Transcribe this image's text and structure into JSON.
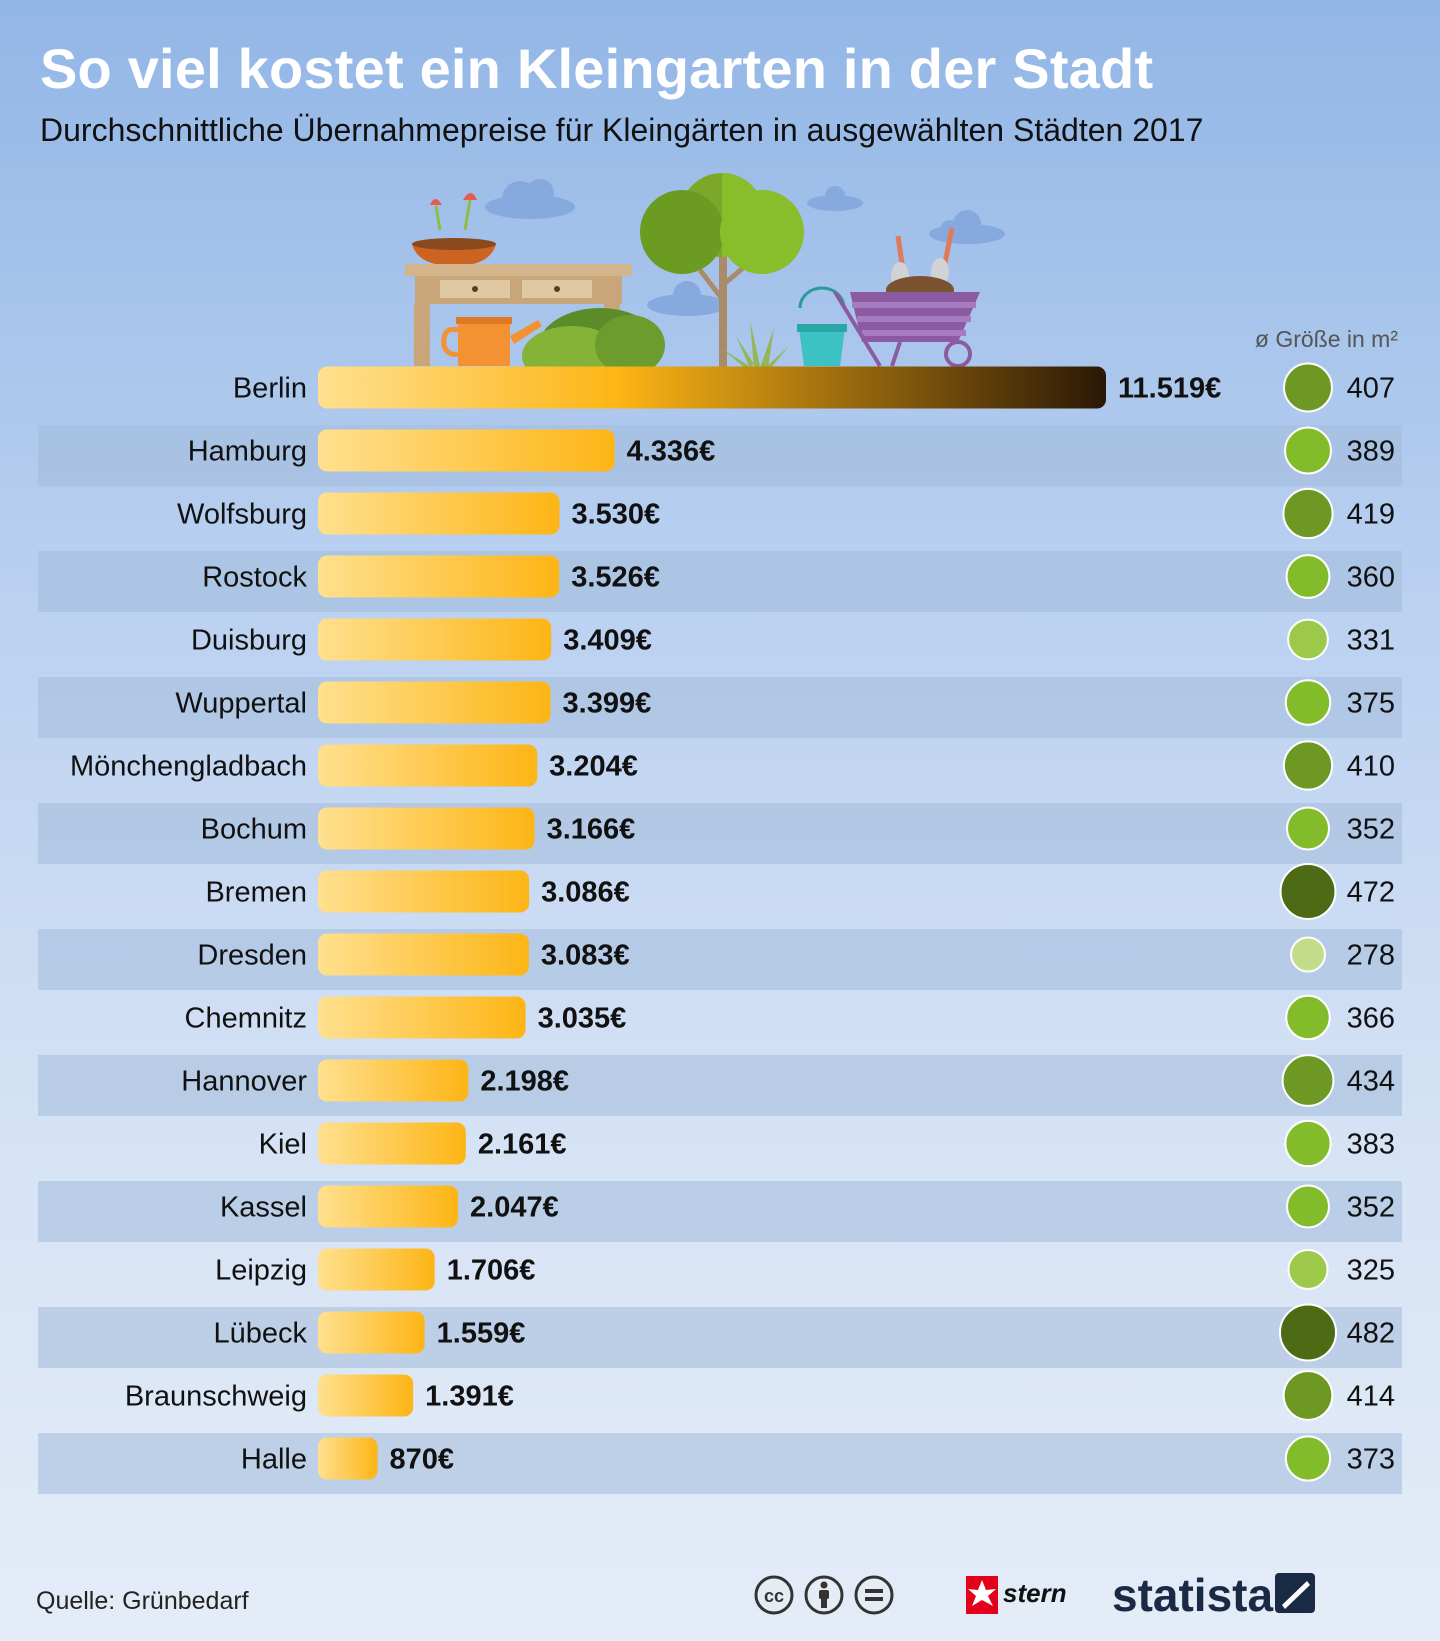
{
  "header": {
    "title": "So viel kostet ein Kleingarten in der Stadt",
    "subtitle": "Durchschnittliche Übernahmepreise für Kleingärten in ausgewählten Städten 2017"
  },
  "size_header": "ø Größe in m²",
  "chart_data": {
    "type": "bar",
    "orientation": "horizontal",
    "title": "So viel kostet ein Kleingarten in der Stadt",
    "subtitle": "Durchschnittliche Übernahmepreise für Kleingärten in ausgewählten Städten 2017",
    "categories": [
      "Berlin",
      "Hamburg",
      "Wolfsburg",
      "Rostock",
      "Duisburg",
      "Wuppertal",
      "Mönchengladbach",
      "Bochum",
      "Bremen",
      "Dresden",
      "Chemnitz",
      "Hannover",
      "Kiel",
      "Kassel",
      "Leipzig",
      "Lübeck",
      "Braunschweig",
      "Halle"
    ],
    "values": [
      11519,
      4336,
      3530,
      3526,
      3409,
      3399,
      3204,
      3166,
      3086,
      3083,
      3035,
      2198,
      2161,
      2047,
      1706,
      1559,
      1391,
      870
    ],
    "value_labels": [
      "11.519€",
      "4.336€",
      "3.530€",
      "3.526€",
      "3.409€",
      "3.399€",
      "3.204€",
      "3.166€",
      "3.086€",
      "3.083€",
      "3.035€",
      "2.198€",
      "2.161€",
      "2.047€",
      "1.706€",
      "1.559€",
      "1.391€",
      "870€"
    ],
    "sizes": [
      407,
      389,
      419,
      360,
      331,
      375,
      410,
      352,
      472,
      278,
      366,
      434,
      383,
      352,
      325,
      482,
      414,
      373
    ],
    "size_label": "ø Größe in m²",
    "colors": {
      "bar_light": "#ffe08f",
      "bar_main": "#fdb515",
      "bar_dark": "#2a1706",
      "row_stripe": "#a3bcda",
      "circle_scale": [
        "#c3dc8a",
        "#9cc94a",
        "#83bc2a",
        "#6d9823",
        "#4c6b14"
      ]
    }
  },
  "footer": {
    "source": "Quelle: Grünbedarf",
    "stern": "stern",
    "statista": "statista"
  },
  "icons": [
    "cc-icon",
    "attribution-icon",
    "no-derivatives-icon"
  ]
}
